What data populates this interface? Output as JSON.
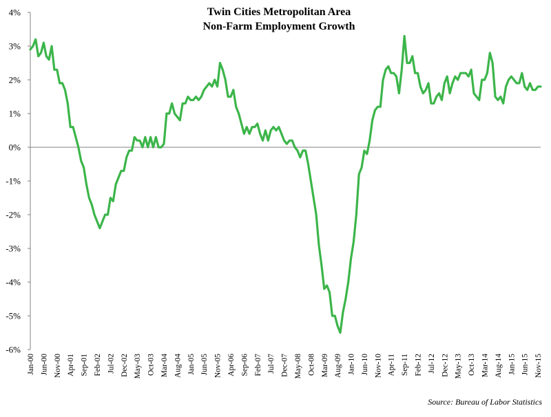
{
  "chart_data": {
    "type": "line",
    "title": "Twin Cities Metropolitan Area",
    "subtitle": "Non-Farm Employment Growth",
    "source": "Source: Bureau of Labor Statistics",
    "xlabel": "",
    "ylabel": "",
    "ylim": [
      -6,
      4
    ],
    "yticks": [
      4,
      3,
      2,
      1,
      0,
      -1,
      -2,
      -3,
      -4,
      -5,
      -6
    ],
    "ytick_labels": [
      "4%",
      "3%",
      "2%",
      "1%",
      "0%",
      "-1%",
      "-2%",
      "-3%",
      "-4%",
      "-5%",
      "-6%"
    ],
    "grid": false,
    "legend": "none",
    "line_color": "#3cb54a",
    "x_start": "2000-01",
    "x_end": "2015-12",
    "x_tick_labels": [
      "Jan-00",
      "Jun-00",
      "Nov-00",
      "Apr-01",
      "Sep-01",
      "Feb-02",
      "Jul-02",
      "Dec-02",
      "May-03",
      "Oct-03",
      "Mar-04",
      "Aug-04",
      "Jan-05",
      "Jun-05",
      "Nov-05",
      "Apr-06",
      "Sep-06",
      "Feb-07",
      "Jul-07",
      "Dec-07",
      "May-08",
      "Oct-08",
      "Mar-09",
      "Aug-09",
      "Jan-10",
      "Jun-10",
      "Nov-10",
      "Apr-11",
      "Sep-11",
      "Feb-12",
      "Jul-12",
      "Dec-12",
      "May-13",
      "Oct-13",
      "Mar-14",
      "Aug-14",
      "Jan-15",
      "Jun-15",
      "Nov-15"
    ],
    "series": [
      {
        "name": "",
        "x": [
          "2000-01",
          "2000-02",
          "2000-03",
          "2000-04",
          "2000-05",
          "2000-06",
          "2000-07",
          "2000-08",
          "2000-09",
          "2000-10",
          "2000-11",
          "2000-12",
          "2001-01",
          "2001-02",
          "2001-03",
          "2001-04",
          "2001-05",
          "2001-06",
          "2001-07",
          "2001-08",
          "2001-09",
          "2001-10",
          "2001-11",
          "2001-12",
          "2002-01",
          "2002-02",
          "2002-03",
          "2002-04",
          "2002-05",
          "2002-06",
          "2002-07",
          "2002-08",
          "2002-09",
          "2002-10",
          "2002-11",
          "2002-12",
          "2003-01",
          "2003-02",
          "2003-03",
          "2003-04",
          "2003-05",
          "2003-06",
          "2003-07",
          "2003-08",
          "2003-09",
          "2003-10",
          "2003-11",
          "2003-12",
          "2004-01",
          "2004-02",
          "2004-03",
          "2004-04",
          "2004-05",
          "2004-06",
          "2004-07",
          "2004-08",
          "2004-09",
          "2004-10",
          "2004-11",
          "2004-12",
          "2005-01",
          "2005-02",
          "2005-03",
          "2005-04",
          "2005-05",
          "2005-06",
          "2005-07",
          "2005-08",
          "2005-09",
          "2005-10",
          "2005-11",
          "2005-12",
          "2006-01",
          "2006-02",
          "2006-03",
          "2006-04",
          "2006-05",
          "2006-06",
          "2006-07",
          "2006-08",
          "2006-09",
          "2006-10",
          "2006-11",
          "2006-12",
          "2007-01",
          "2007-02",
          "2007-03",
          "2007-04",
          "2007-05",
          "2007-06",
          "2007-07",
          "2007-08",
          "2007-09",
          "2007-10",
          "2007-11",
          "2007-12",
          "2008-01",
          "2008-02",
          "2008-03",
          "2008-04",
          "2008-05",
          "2008-06",
          "2008-07",
          "2008-08",
          "2008-09",
          "2008-10",
          "2008-11",
          "2008-12",
          "2009-01",
          "2009-02",
          "2009-03",
          "2009-04",
          "2009-05",
          "2009-06",
          "2009-07",
          "2009-08",
          "2009-09",
          "2009-10",
          "2009-11",
          "2009-12",
          "2010-01",
          "2010-02",
          "2010-03",
          "2010-04",
          "2010-05",
          "2010-06",
          "2010-07",
          "2010-08",
          "2010-09",
          "2010-10",
          "2010-11",
          "2010-12",
          "2011-01",
          "2011-02",
          "2011-03",
          "2011-04",
          "2011-05",
          "2011-06",
          "2011-07",
          "2011-08",
          "2011-09",
          "2011-10",
          "2011-11",
          "2011-12",
          "2012-01",
          "2012-02",
          "2012-03",
          "2012-04",
          "2012-05",
          "2012-06",
          "2012-07",
          "2012-08",
          "2012-09",
          "2012-10",
          "2012-11",
          "2012-12",
          "2013-01",
          "2013-02",
          "2013-03",
          "2013-04",
          "2013-05",
          "2013-06",
          "2013-07",
          "2013-08",
          "2013-09",
          "2013-10",
          "2013-11",
          "2013-12",
          "2014-01",
          "2014-02",
          "2014-03",
          "2014-04",
          "2014-05",
          "2014-06",
          "2014-07",
          "2014-08",
          "2014-09",
          "2014-10",
          "2014-11",
          "2014-12",
          "2015-01",
          "2015-02",
          "2015-03",
          "2015-04",
          "2015-05",
          "2015-06",
          "2015-07",
          "2015-08",
          "2015-09",
          "2015-10",
          "2015-11",
          "2015-12"
        ],
        "values": [
          2.9,
          3.0,
          3.2,
          2.7,
          2.8,
          3.1,
          2.7,
          2.6,
          3.0,
          2.3,
          2.3,
          1.9,
          1.9,
          1.7,
          1.3,
          0.6,
          0.6,
          0.3,
          0.0,
          -0.4,
          -0.6,
          -1.1,
          -1.5,
          -1.7,
          -2.0,
          -2.2,
          -2.4,
          -2.2,
          -2.0,
          -2.0,
          -1.5,
          -1.6,
          -1.1,
          -0.9,
          -0.7,
          -0.7,
          -0.3,
          -0.1,
          -0.1,
          0.3,
          0.2,
          0.2,
          0.0,
          0.3,
          0.0,
          0.3,
          0.0,
          0.3,
          0.0,
          0.0,
          0.1,
          1.0,
          1.0,
          1.3,
          1.0,
          0.9,
          0.8,
          1.3,
          1.3,
          1.5,
          1.4,
          1.4,
          1.5,
          1.4,
          1.5,
          1.7,
          1.8,
          1.9,
          1.8,
          2.0,
          1.8,
          2.5,
          2.3,
          2.0,
          1.5,
          1.5,
          1.7,
          1.2,
          1.0,
          0.7,
          0.4,
          0.6,
          0.4,
          0.6,
          0.6,
          0.7,
          0.4,
          0.2,
          0.5,
          0.2,
          0.5,
          0.6,
          0.5,
          0.6,
          0.4,
          0.2,
          0.1,
          0.2,
          0.2,
          0.0,
          -0.1,
          -0.3,
          -0.1,
          -0.1,
          -0.5,
          -1.0,
          -1.5,
          -2.0,
          -2.9,
          -3.5,
          -4.2,
          -4.1,
          -4.3,
          -5.0,
          -5.0,
          -5.3,
          -5.5,
          -4.9,
          -4.5,
          -4.0,
          -3.3,
          -2.8,
          -2.0,
          -0.8,
          -0.6,
          -0.1,
          -0.2,
          0.2,
          0.8,
          1.1,
          1.2,
          1.2,
          2.0,
          2.3,
          2.4,
          2.2,
          2.2,
          2.1,
          1.6,
          2.3,
          3.3,
          2.5,
          2.5,
          2.7,
          2.2,
          2.2,
          1.8,
          1.6,
          1.7,
          1.9,
          1.3,
          1.3,
          1.5,
          1.6,
          1.4,
          1.9,
          2.1,
          1.6,
          1.9,
          2.1,
          2.0,
          2.2,
          2.2,
          2.2,
          2.1,
          2.3,
          1.6,
          1.5,
          1.4,
          2.0,
          2.0,
          2.2,
          2.8,
          2.5,
          1.5,
          1.4,
          1.5,
          1.3,
          1.8,
          2.0,
          2.1,
          2.0,
          1.9,
          1.9,
          2.2,
          1.8,
          1.7,
          1.9,
          1.7,
          1.7,
          1.8,
          1.8
        ]
      }
    ]
  }
}
